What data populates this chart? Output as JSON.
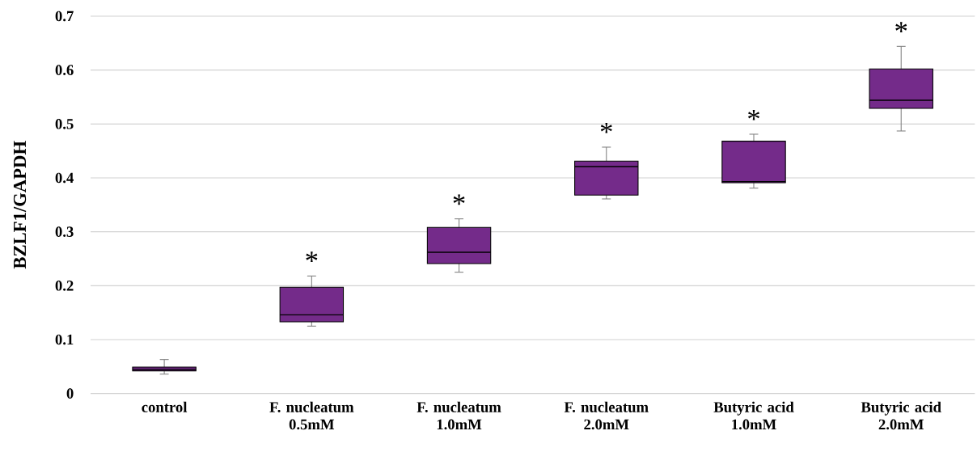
{
  "chart_data": {
    "type": "box",
    "ylabel": "BZLF1/GAPDH",
    "categories": [
      "control",
      "F. nucleatum 0.5mM",
      "F. nucleatum 1.0mM",
      "F. nucleatum 2.0mM",
      "Butyric acid 1.0mM",
      "Butyric acid 2.0mM"
    ],
    "boxes": [
      {
        "low": 0.036,
        "q1": 0.042,
        "median": 0.045,
        "q3": 0.049,
        "high": 0.063
      },
      {
        "low": 0.125,
        "q1": 0.133,
        "median": 0.146,
        "q3": 0.197,
        "high": 0.218
      },
      {
        "low": 0.225,
        "q1": 0.241,
        "median": 0.262,
        "q3": 0.308,
        "high": 0.324
      },
      {
        "low": 0.361,
        "q1": 0.368,
        "median": 0.421,
        "q3": 0.431,
        "high": 0.457
      },
      {
        "low": 0.381,
        "q1": 0.391,
        "median": 0.393,
        "q3": 0.468,
        "high": 0.481
      },
      {
        "low": 0.487,
        "q1": 0.529,
        "median": 0.544,
        "q3": 0.602,
        "high": 0.644
      }
    ],
    "color": "#742b8a",
    "ylim": [
      0,
      0.7
    ],
    "yticks": [
      0,
      0.1,
      0.2,
      0.3,
      0.4,
      0.5,
      0.6,
      0.7
    ],
    "grid": "y",
    "annotations": [
      "*",
      "*",
      "*",
      "*",
      "*"
    ]
  }
}
